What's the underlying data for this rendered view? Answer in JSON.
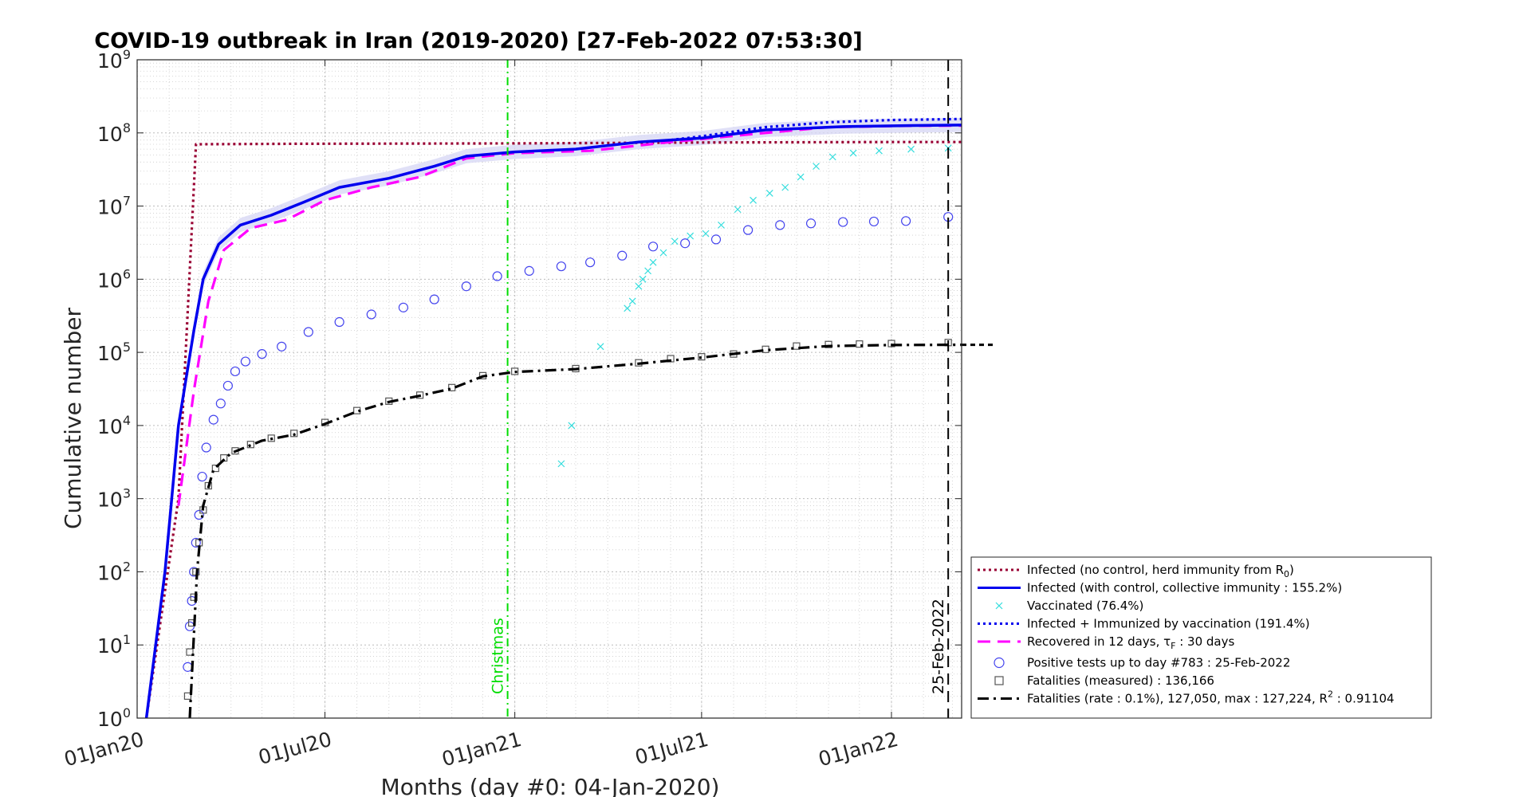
{
  "chart_data": {
    "type": "line",
    "title": "COVID-19 outbreak in Iran (2019-2020) [27-Feb-2022 07:53:30]",
    "xlabel": "Months (day #0: 04-Jan-2020)",
    "ylabel": "Cumulative number",
    "xlim": [
      "2020-01-01",
      "2022-03-10"
    ],
    "ylim": [
      1,
      1000000000
    ],
    "yscale": "log",
    "grid": true,
    "legend_position": "lower-right, outside plot",
    "x_ticks": [
      {
        "date": "2020-01-01",
        "label": "01Jan20"
      },
      {
        "date": "2020-07-01",
        "label": "01Jul20"
      },
      {
        "date": "2021-01-01",
        "label": "01Jan21"
      },
      {
        "date": "2021-07-01",
        "label": "01Jul21"
      },
      {
        "date": "2022-01-01",
        "label": "01Jan22"
      }
    ],
    "y_ticks": [
      {
        "value": 1,
        "base": "10",
        "exp": "0"
      },
      {
        "value": 10,
        "base": "10",
        "exp": "1"
      },
      {
        "value": 100,
        "base": "10",
        "exp": "2"
      },
      {
        "value": 1000,
        "base": "10",
        "exp": "3"
      },
      {
        "value": 10000,
        "base": "10",
        "exp": "4"
      },
      {
        "value": 100000,
        "base": "10",
        "exp": "5"
      },
      {
        "value": 1000000,
        "base": "10",
        "exp": "6"
      },
      {
        "value": 10000000,
        "base": "10",
        "exp": "7"
      },
      {
        "value": 100000000,
        "base": "10",
        "exp": "8"
      },
      {
        "value": 1000000000,
        "base": "10",
        "exp": "9"
      }
    ],
    "vlines": [
      {
        "date": "2020-12-25",
        "label": "Christmas",
        "color": "#00dd00",
        "style": "dashdot"
      },
      {
        "date": "2022-02-25",
        "label": "25-Feb-2022",
        "color": "#000000",
        "style": "dashed"
      }
    ],
    "series": [
      {
        "id": "no_control",
        "name": "Infected (no control, herd immunity from R",
        "name_sub": "0",
        "name_tail": ")",
        "color": "#990033",
        "style": "dotted",
        "kind": "line",
        "points": [
          [
            "2020-01-10",
            1
          ],
          [
            "2020-02-10",
            1000
          ],
          [
            "2020-02-27",
            70000000
          ],
          [
            "2020-06-01",
            71000000
          ],
          [
            "2021-01-01",
            72000000
          ],
          [
            "2021-07-01",
            74000000
          ],
          [
            "2022-01-01",
            75000000
          ],
          [
            "2022-03-10",
            75000000
          ]
        ]
      },
      {
        "id": "infected_control",
        "name": "Infected (with control, collective immunity : 155.2%)",
        "color": "#0000ee",
        "style": "solid",
        "kind": "line",
        "band": "#d8d8f5",
        "points": [
          [
            "2020-01-10",
            1
          ],
          [
            "2020-01-28",
            100
          ],
          [
            "2020-02-10",
            10000
          ],
          [
            "2020-02-25",
            200000
          ],
          [
            "2020-03-05",
            1000000
          ],
          [
            "2020-03-20",
            3000000
          ],
          [
            "2020-04-10",
            5500000
          ],
          [
            "2020-05-10",
            7500000
          ],
          [
            "2020-06-15",
            12000000
          ],
          [
            "2020-07-15",
            18000000
          ],
          [
            "2020-09-01",
            24000000
          ],
          [
            "2020-10-15",
            35000000
          ],
          [
            "2020-11-15",
            48000000
          ],
          [
            "2021-01-01",
            55000000
          ],
          [
            "2021-03-01",
            60000000
          ],
          [
            "2021-05-01",
            75000000
          ],
          [
            "2021-07-01",
            85000000
          ],
          [
            "2021-09-01",
            110000000
          ],
          [
            "2021-11-15",
            122000000
          ],
          [
            "2022-01-15",
            126000000
          ],
          [
            "2022-03-10",
            128000000
          ]
        ]
      },
      {
        "id": "vaccinated",
        "name": "Vaccinated (76.4%)",
        "color": "#33dddd",
        "style": "none",
        "kind": "x-marker",
        "points": [
          [
            "2021-02-15",
            3000
          ],
          [
            "2021-02-25",
            10000
          ],
          [
            "2021-03-25",
            120000
          ],
          [
            "2021-04-20",
            400000
          ],
          [
            "2021-04-25",
            500000
          ],
          [
            "2021-05-01",
            800000
          ],
          [
            "2021-05-05",
            1000000
          ],
          [
            "2021-05-10",
            1300000
          ],
          [
            "2021-05-15",
            1700000
          ],
          [
            "2021-05-25",
            2300000
          ],
          [
            "2021-06-05",
            3300000
          ],
          [
            "2021-06-20",
            3900000
          ],
          [
            "2021-07-05",
            4200000
          ],
          [
            "2021-07-20",
            5500000
          ],
          [
            "2021-08-05",
            9000000
          ],
          [
            "2021-08-20",
            12000000
          ],
          [
            "2021-09-05",
            15000000
          ],
          [
            "2021-09-20",
            18000000
          ],
          [
            "2021-10-05",
            25000000
          ],
          [
            "2021-10-20",
            35000000
          ],
          [
            "2021-11-05",
            47000000
          ],
          [
            "2021-11-25",
            53000000
          ],
          [
            "2021-12-20",
            57000000
          ],
          [
            "2022-01-20",
            60000000
          ],
          [
            "2022-02-25",
            62000000
          ]
        ]
      },
      {
        "id": "infected_vacc",
        "name": "Infected + Immunized by vaccination (191.4%)",
        "color": "#0000ee",
        "style": "dotted",
        "kind": "line",
        "points": [
          [
            "2021-06-01",
            80000000
          ],
          [
            "2021-07-01",
            90000000
          ],
          [
            "2021-09-01",
            120000000
          ],
          [
            "2021-11-01",
            140000000
          ],
          [
            "2022-01-01",
            150000000
          ],
          [
            "2022-03-10",
            155000000
          ]
        ]
      },
      {
        "id": "recovered",
        "name": "Recovered in 12 days, τ",
        "name_sub": "F",
        "name_tail": " : 30 days",
        "color": "#ff00ff",
        "style": "dashed",
        "kind": "line",
        "points": [
          [
            "2020-02-10",
            800
          ],
          [
            "2020-02-25",
            30000
          ],
          [
            "2020-03-10",
            500000
          ],
          [
            "2020-03-25",
            2500000
          ],
          [
            "2020-04-20",
            5000000
          ],
          [
            "2020-05-25",
            6500000
          ],
          [
            "2020-07-01",
            12000000
          ],
          [
            "2020-08-15",
            18000000
          ],
          [
            "2020-10-01",
            25000000
          ],
          [
            "2020-11-15",
            45000000
          ],
          [
            "2021-01-01",
            53000000
          ],
          [
            "2021-03-15",
            57000000
          ],
          [
            "2021-06-01",
            75000000
          ],
          [
            "2021-08-15",
            95000000
          ],
          [
            "2021-11-01",
            120000000
          ],
          [
            "2022-01-15",
            125000000
          ],
          [
            "2022-03-10",
            126000000
          ]
        ]
      },
      {
        "id": "positive_tests",
        "name": "Positive tests up to day #783 : 25-Feb-2022",
        "color": "#4444ee",
        "style": "none",
        "kind": "circle-marker",
        "points": [
          [
            "2020-02-19",
            5
          ],
          [
            "2020-02-21",
            18
          ],
          [
            "2020-02-23",
            40
          ],
          [
            "2020-02-25",
            100
          ],
          [
            "2020-02-27",
            250
          ],
          [
            "2020-03-01",
            600
          ],
          [
            "2020-03-04",
            2000
          ],
          [
            "2020-03-08",
            5000
          ],
          [
            "2020-03-15",
            12000
          ],
          [
            "2020-03-22",
            20000
          ],
          [
            "2020-03-29",
            35000
          ],
          [
            "2020-04-05",
            55000
          ],
          [
            "2020-04-15",
            75000
          ],
          [
            "2020-05-01",
            95000
          ],
          [
            "2020-05-20",
            120000
          ],
          [
            "2020-06-15",
            190000
          ],
          [
            "2020-07-15",
            260000
          ],
          [
            "2020-08-15",
            330000
          ],
          [
            "2020-09-15",
            410000
          ],
          [
            "2020-10-15",
            530000
          ],
          [
            "2020-11-15",
            800000
          ],
          [
            "2020-12-15",
            1100000
          ],
          [
            "2021-01-15",
            1300000
          ],
          [
            "2021-02-15",
            1500000
          ],
          [
            "2021-03-15",
            1700000
          ],
          [
            "2021-04-15",
            2100000
          ],
          [
            "2021-05-15",
            2800000
          ],
          [
            "2021-06-15",
            3100000
          ],
          [
            "2021-07-15",
            3500000
          ],
          [
            "2021-08-15",
            4700000
          ],
          [
            "2021-09-15",
            5500000
          ],
          [
            "2021-10-15",
            5800000
          ],
          [
            "2021-11-15",
            6050000
          ],
          [
            "2021-12-15",
            6150000
          ],
          [
            "2022-01-15",
            6250000
          ],
          [
            "2022-02-25",
            7100000
          ]
        ]
      },
      {
        "id": "fatalities_measured",
        "name": "Fatalities (measured) : 136,166",
        "color": "#555555",
        "style": "none",
        "kind": "square-marker",
        "points": [
          [
            "2020-02-19",
            2
          ],
          [
            "2020-02-21",
            8
          ],
          [
            "2020-02-23",
            20
          ],
          [
            "2020-02-25",
            45
          ],
          [
            "2020-02-27",
            100
          ],
          [
            "2020-03-01",
            250
          ],
          [
            "2020-03-05",
            700
          ],
          [
            "2020-03-10",
            1500
          ],
          [
            "2020-03-17",
            2600
          ],
          [
            "2020-03-25",
            3600
          ],
          [
            "2020-04-05",
            4500
          ],
          [
            "2020-04-20",
            5500
          ],
          [
            "2020-05-10",
            6700
          ],
          [
            "2020-06-01",
            7800
          ],
          [
            "2020-07-01",
            11000
          ],
          [
            "2020-08-01",
            16000
          ],
          [
            "2020-09-01",
            21500
          ],
          [
            "2020-10-01",
            26000
          ],
          [
            "2020-11-01",
            33000
          ],
          [
            "2020-12-01",
            48000
          ],
          [
            "2021-01-01",
            55000
          ],
          [
            "2021-03-01",
            60000
          ],
          [
            "2021-05-01",
            72000
          ],
          [
            "2021-06-01",
            82000
          ],
          [
            "2021-07-01",
            87000
          ],
          [
            "2021-08-01",
            95000
          ],
          [
            "2021-09-01",
            110000
          ],
          [
            "2021-10-01",
            122000
          ],
          [
            "2021-11-01",
            128000
          ],
          [
            "2021-12-01",
            130000
          ],
          [
            "2022-01-01",
            132000
          ],
          [
            "2022-02-25",
            136166
          ]
        ]
      },
      {
        "id": "fatalities_rate",
        "name": "Fatalities (rate : 0.1%), 127,050, max : 127,224, R",
        "name_sup": "2",
        "name_tail": " : 0.91104",
        "color": "#000000",
        "style": "dashdot",
        "kind": "line",
        "points": [
          [
            "2020-02-21",
            1
          ],
          [
            "2020-02-28",
            100
          ],
          [
            "2020-03-05",
            800
          ],
          [
            "2020-03-15",
            2500
          ],
          [
            "2020-04-01",
            4200
          ],
          [
            "2020-05-01",
            6200
          ],
          [
            "2020-06-01",
            7500
          ],
          [
            "2020-07-01",
            10500
          ],
          [
            "2020-08-01",
            15500
          ],
          [
            "2020-09-01",
            21000
          ],
          [
            "2020-10-01",
            25500
          ],
          [
            "2020-11-01",
            32000
          ],
          [
            "2020-12-01",
            47000
          ],
          [
            "2021-01-01",
            54000
          ],
          [
            "2021-03-01",
            59000
          ],
          [
            "2021-05-01",
            70000
          ],
          [
            "2021-07-01",
            85000
          ],
          [
            "2021-09-01",
            107000
          ],
          [
            "2021-11-01",
            122000
          ],
          [
            "2022-01-01",
            126000
          ],
          [
            "2022-03-10",
            127050
          ]
        ]
      }
    ]
  }
}
